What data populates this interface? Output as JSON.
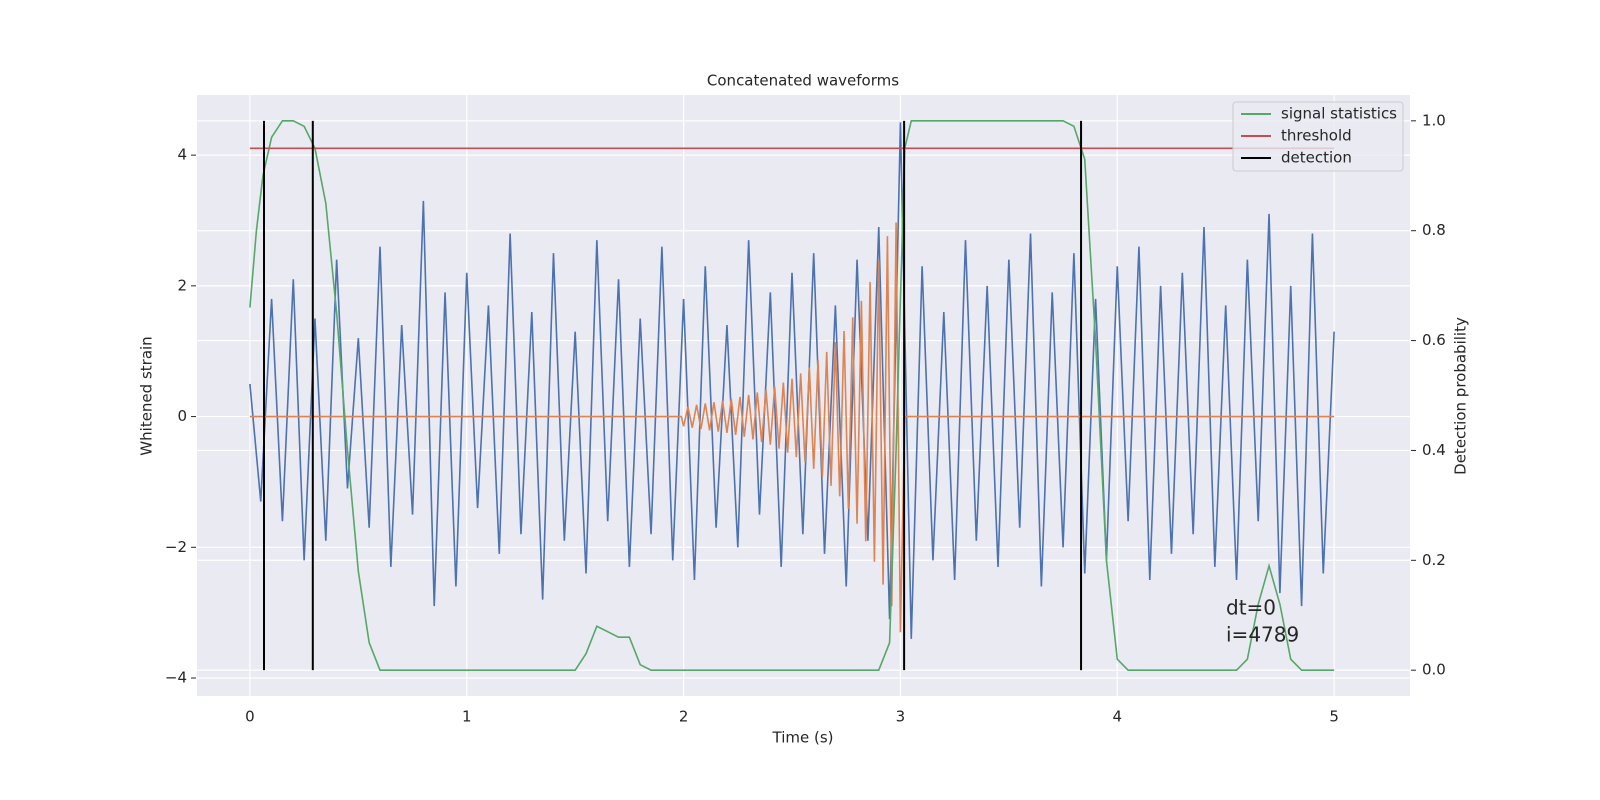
{
  "chart_data": {
    "type": "line",
    "title": "Concatenated waveforms",
    "xlabel": "Time (s)",
    "ylabel": "Whitened strain",
    "y2label": "Detection probability",
    "xlim": [
      -0.244,
      5.35
    ],
    "ylim": [
      -4.275,
      4.92
    ],
    "y2lim": [
      -0.047,
      1.047
    ],
    "xticks": [
      0,
      1,
      2,
      3,
      4,
      5
    ],
    "yticks": [
      {
        "value": -4,
        "label": "−4"
      },
      {
        "value": -2,
        "label": "−2"
      },
      0,
      2,
      4
    ],
    "y2ticks": [
      {
        "value": 0,
        "label": "0.0"
      },
      0.2,
      0.4,
      0.6,
      0.8,
      {
        "value": 1,
        "label": "1.0"
      }
    ],
    "grid": true,
    "legend": "upper right",
    "annotations": [
      "dt=0",
      "i=4789"
    ],
    "series": [
      {
        "style": "line",
        "color": "#4c72b0",
        "x": [
          0,
          0.05,
          0.1,
          0.15,
          0.2,
          0.25,
          0.3,
          0.35,
          0.4,
          0.45,
          0.5,
          0.55,
          0.6,
          0.65,
          0.7,
          0.75,
          0.8,
          0.85,
          0.9,
          0.95,
          1,
          1.05,
          1.1,
          1.15,
          1.2,
          1.25,
          1.3,
          1.35,
          1.4,
          1.45,
          1.5,
          1.55,
          1.6,
          1.65,
          1.7,
          1.75,
          1.8,
          1.85,
          1.9,
          1.95,
          2,
          2.05,
          2.1,
          2.15,
          2.2,
          2.25,
          2.3,
          2.35,
          2.4,
          2.45,
          2.5,
          2.55,
          2.6,
          2.65,
          2.7,
          2.75,
          2.8,
          2.85,
          2.9,
          2.95,
          3,
          3.05,
          3.1,
          3.15,
          3.2,
          3.25,
          3.3,
          3.35,
          3.4,
          3.45,
          3.5,
          3.55,
          3.6,
          3.65,
          3.7,
          3.75,
          3.8,
          3.85,
          3.9,
          3.95,
          4,
          4.05,
          4.1,
          4.15,
          4.2,
          4.25,
          4.3,
          4.35,
          4.4,
          4.45,
          4.5,
          4.55,
          4.6,
          4.65,
          4.7,
          4.75,
          4.8,
          4.85,
          4.9,
          4.95,
          5
        ],
        "values": [
          0.5,
          -1.3,
          1.8,
          -1.6,
          2.1,
          -2.2,
          1.5,
          -1.9,
          2.4,
          -1.1,
          1.2,
          -1.7,
          2.6,
          -2.3,
          1.4,
          -1.5,
          3.3,
          -2.9,
          1.9,
          -2.6,
          2.2,
          -1.4,
          1.7,
          -2.1,
          2.8,
          -1.8,
          1.6,
          -2.8,
          2.5,
          -1.9,
          1.3,
          -2.4,
          2.7,
          -1.6,
          2.1,
          -2.3,
          1.5,
          -1.8,
          2.6,
          -2.2,
          1.8,
          -2.5,
          2.3,
          -1.7,
          1.4,
          -2.0,
          2.7,
          -1.5,
          1.9,
          -2.3,
          2.2,
          -1.8,
          2.5,
          -2.1,
          1.7,
          -2.6,
          2.4,
          -1.9,
          2.9,
          -3.1,
          4.5,
          -3.4,
          2.3,
          -2.2,
          1.6,
          -2.5,
          2.7,
          -1.9,
          2.0,
          -2.3,
          2.4,
          -1.7,
          2.8,
          -2.6,
          1.9,
          -2.0,
          2.5,
          -2.4,
          1.8,
          -2.2,
          2.3,
          -1.6,
          2.6,
          -2.5,
          2.0,
          -2.1,
          2.2,
          -1.8,
          2.9,
          -2.3,
          1.7,
          -2.5,
          2.4,
          -1.6,
          3.1,
          -2.7,
          2.0,
          -2.9,
          2.8,
          -2.4,
          1.3
        ]
      },
      {
        "style": "line",
        "color": "#dd8452",
        "x": [
          0,
          1.99,
          2,
          2.02,
          2.04,
          2.06,
          2.08,
          2.1,
          2.12,
          2.14,
          2.16,
          2.18,
          2.2,
          2.22,
          2.24,
          2.26,
          2.28,
          2.3,
          2.32,
          2.34,
          2.36,
          2.38,
          2.4,
          2.42,
          2.44,
          2.46,
          2.48,
          2.5,
          2.52,
          2.54,
          2.56,
          2.58,
          2.6,
          2.62,
          2.64,
          2.66,
          2.68,
          2.7,
          2.72,
          2.74,
          2.76,
          2.78,
          2.8,
          2.82,
          2.84,
          2.86,
          2.88,
          2.9,
          2.92,
          2.94,
          2.96,
          2.98,
          3,
          3.02,
          5
        ],
        "values": [
          0,
          0,
          -0.15,
          0.15,
          -0.17,
          0.18,
          -0.19,
          0.2,
          -0.21,
          0.22,
          -0.23,
          0.24,
          -0.25,
          0.27,
          -0.28,
          0.3,
          -0.31,
          0.33,
          -0.35,
          0.37,
          -0.39,
          0.41,
          -0.43,
          0.46,
          -0.49,
          0.52,
          -0.55,
          0.58,
          -0.62,
          0.66,
          -0.7,
          0.75,
          -0.8,
          0.86,
          -0.92,
          0.99,
          -1.06,
          1.14,
          -1.22,
          1.31,
          -1.41,
          1.52,
          -1.64,
          1.77,
          -1.91,
          2.06,
          -2.22,
          2.39,
          -2.57,
          2.76,
          -2.9,
          2.97,
          -3.3,
          0,
          0
        ]
      },
      {
        "style": "line",
        "name": "signal statistics",
        "color": "#55a868",
        "axis": "y2",
        "x": [
          0,
          0.03,
          0.06,
          0.1,
          0.15,
          0.2,
          0.25,
          0.3,
          0.35,
          0.4,
          0.45,
          0.5,
          0.55,
          0.6,
          1.5,
          1.55,
          1.6,
          1.65,
          1.7,
          1.75,
          1.8,
          1.85,
          2.9,
          2.95,
          2.98,
          3.02,
          3.05,
          3.75,
          3.8,
          3.85,
          3.9,
          3.95,
          4,
          4.05,
          4.55,
          4.6,
          4.65,
          4.7,
          4.75,
          4.8,
          4.85,
          5
        ],
        "values": [
          0.66,
          0.8,
          0.9,
          0.97,
          1,
          1,
          0.99,
          0.95,
          0.85,
          0.65,
          0.4,
          0.18,
          0.05,
          0,
          0,
          0.03,
          0.08,
          0.07,
          0.06,
          0.06,
          0.01,
          0,
          0,
          0.05,
          0.4,
          0.95,
          1,
          1,
          0.99,
          0.93,
          0.6,
          0.2,
          0.02,
          0,
          0,
          0.02,
          0.12,
          0.19,
          0.12,
          0.02,
          0,
          0
        ]
      },
      {
        "style": "hline",
        "name": "threshold",
        "color": "#c44e52",
        "axis": "y2",
        "value": 0.95,
        "xmin": 0,
        "xmax": 5
      },
      {
        "style": "vlines",
        "name": "detection",
        "color": "#000000",
        "axis": "y2",
        "x": [
          0.065,
          0.29,
          3.017,
          3.833
        ],
        "ymin": 0,
        "ymax": 1
      }
    ]
  }
}
